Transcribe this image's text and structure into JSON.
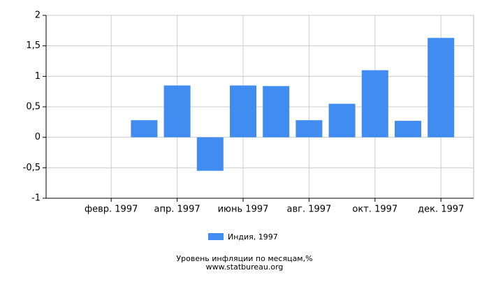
{
  "chart_data": {
    "type": "bar",
    "title": "Уровень инфляции по месяцам,%",
    "source": "www.statbureau.org",
    "categories": [
      null,
      "февр. 1997",
      null,
      "апр. 1997",
      null,
      "июнь 1997",
      null,
      "авг. 1997",
      null,
      "окт. 1997",
      null,
      "дек. 1997"
    ],
    "series": [
      {
        "name": "Индия, 1997",
        "color": "#418cf0",
        "values": [
          null,
          null,
          0.28,
          0.85,
          -0.55,
          0.85,
          0.84,
          0.28,
          0.55,
          1.1,
          0.27,
          1.63
        ]
      }
    ],
    "ylim": [
      -1,
      2
    ],
    "yticks": [
      {
        "value": -1,
        "label": "-1"
      },
      {
        "value": -0.5,
        "label": "-0,5"
      },
      0,
      {
        "value": 0.5,
        "label": "0,5"
      },
      1,
      {
        "value": 1.5,
        "label": "1,5"
      },
      2
    ],
    "grid": true
  }
}
